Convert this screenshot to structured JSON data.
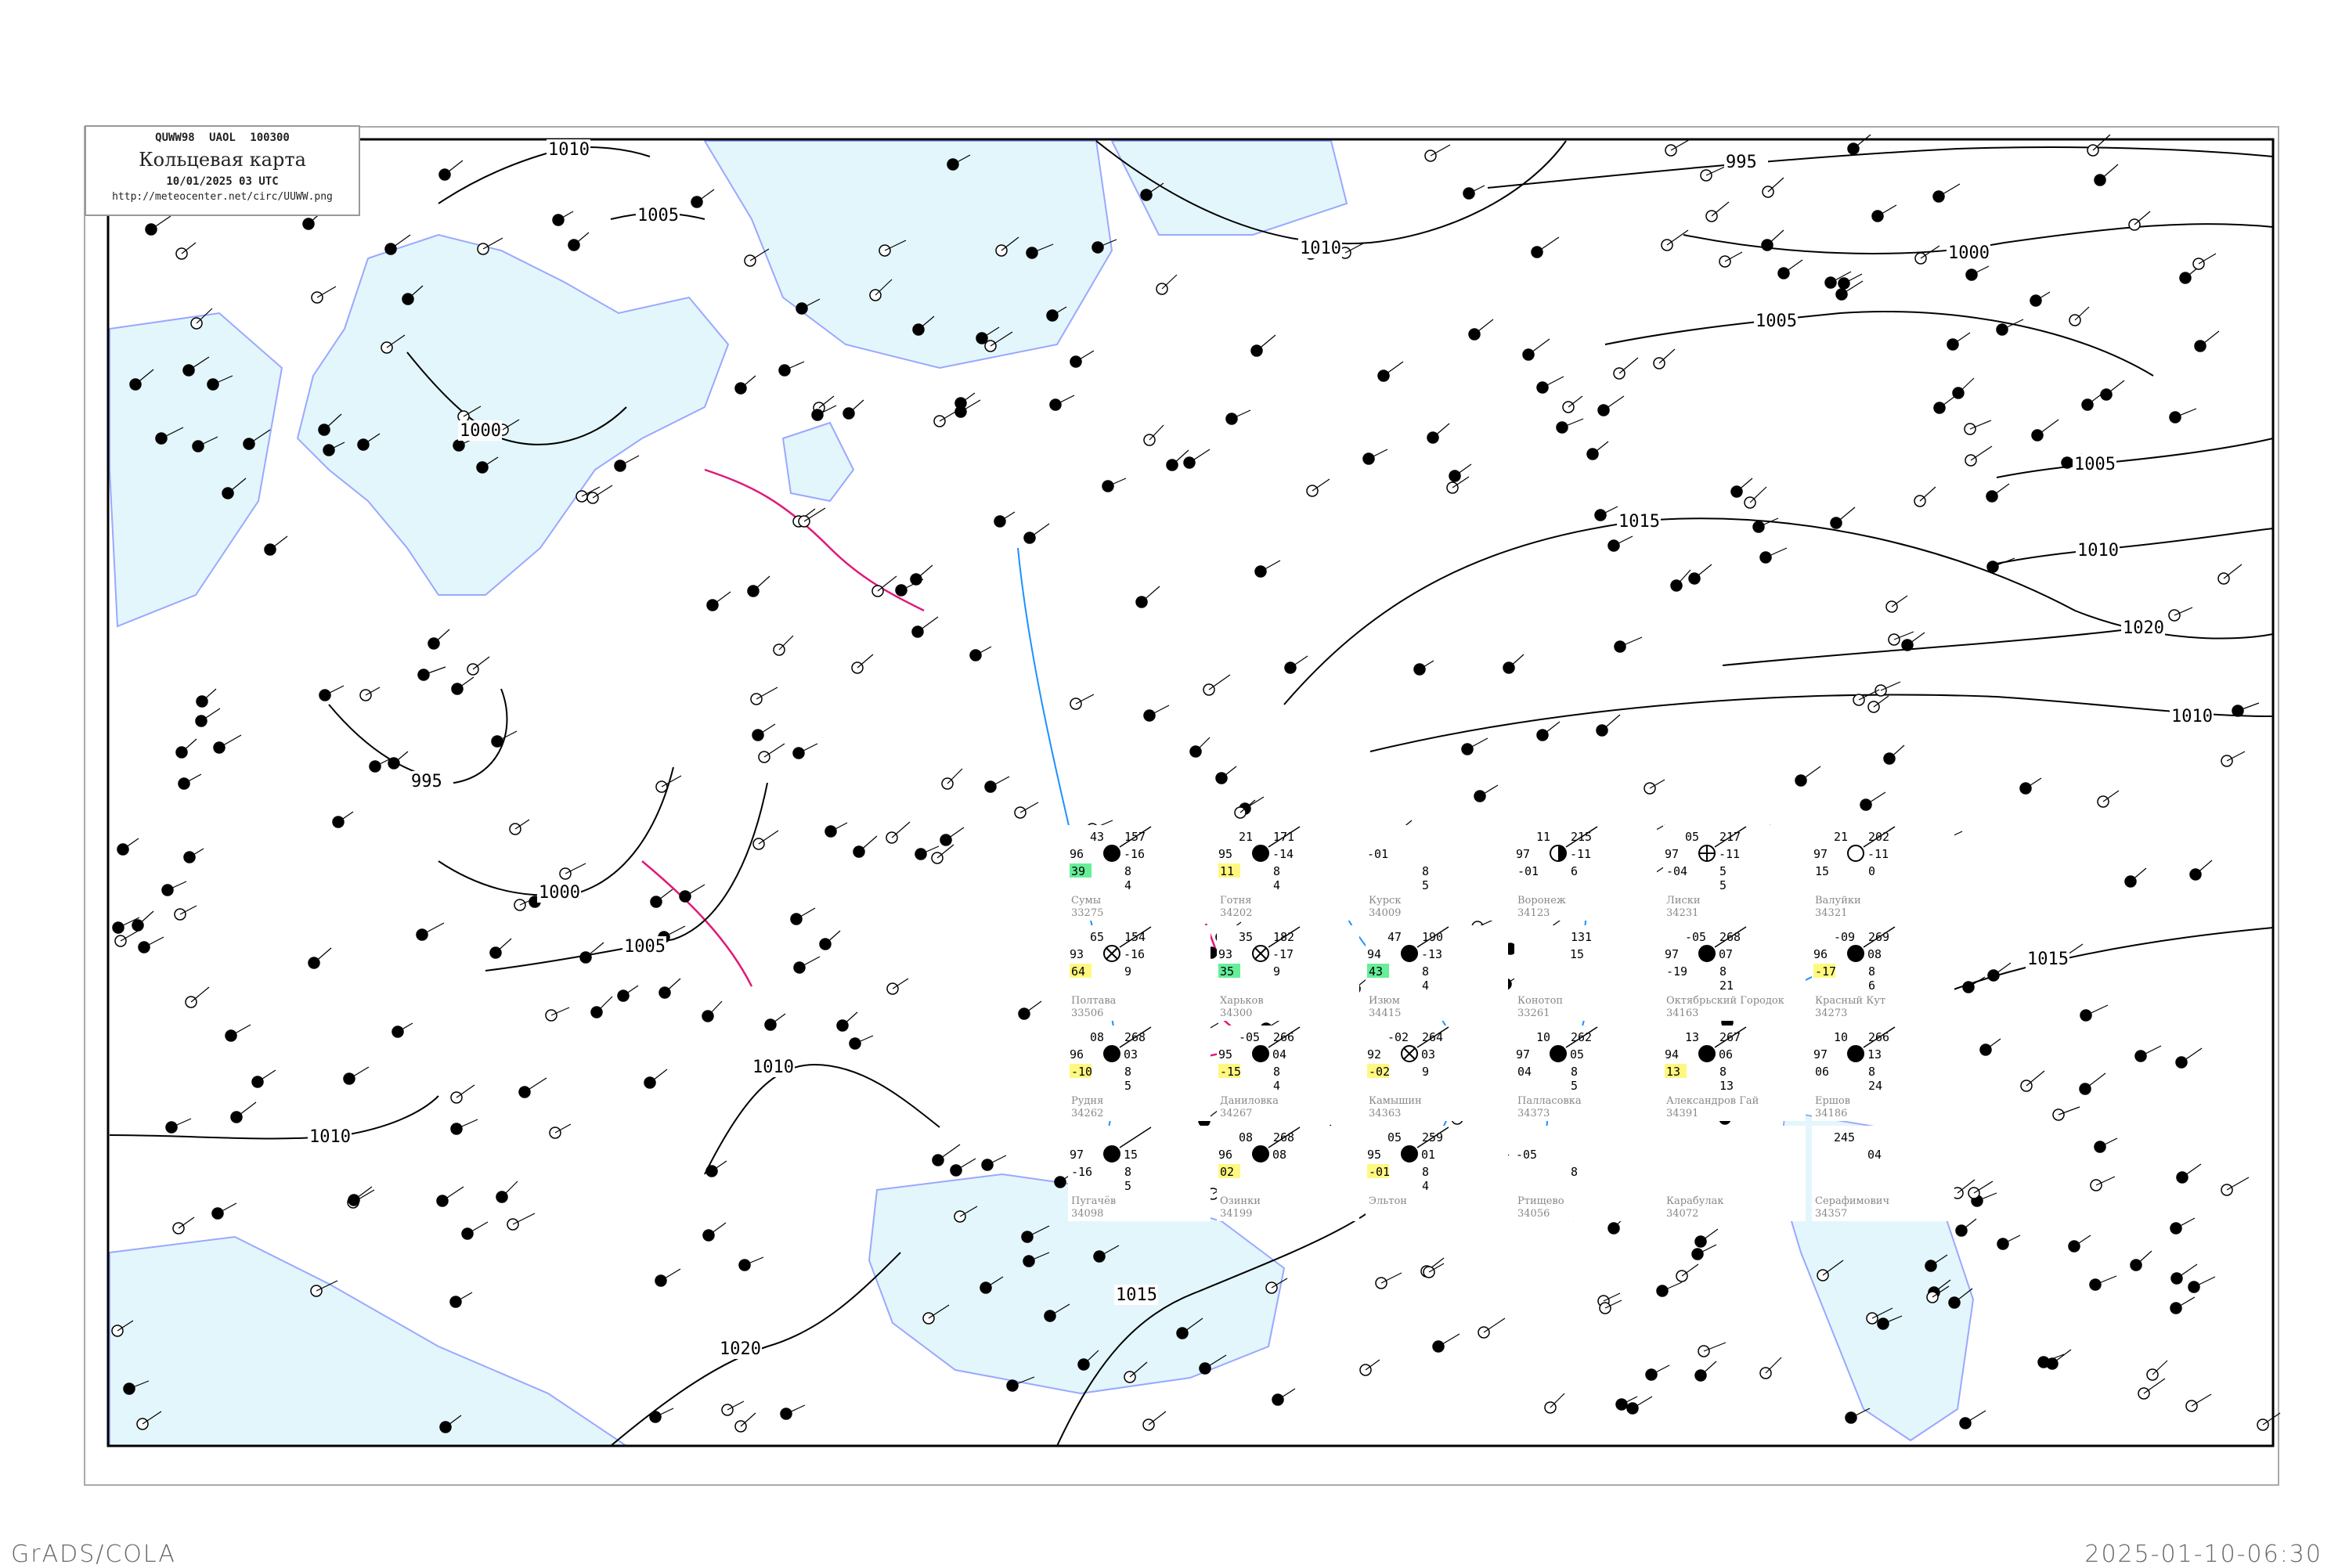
{
  "header": {
    "code": "QUWW98  UAOL  100300",
    "title": "Кольцевая карта",
    "datetime": "10/01/2025 03 UTC",
    "url": "http://meteocenter.net/circ/UUWW.png"
  },
  "footer": {
    "left": "GrADS/COLA",
    "right": "2025-01-10-06:30"
  },
  "colors": {
    "water": "#e3f6fb",
    "rivers": "#1e90ff",
    "isobars": "#000000",
    "fronts": "#e0197a",
    "box_green": "#66ee99",
    "box_yellow": "#fff880"
  },
  "isobar_labels": [
    "995",
    "1000",
    "1005",
    "1010",
    "1015",
    "1020",
    "1010",
    "1015",
    "1020",
    "1000",
    "1005",
    "995",
    "1000",
    "1010",
    "1005",
    "1010",
    "1010",
    "1015",
    "1010",
    "1005"
  ],
  "stations": [
    {
      "name": "Сумы",
      "id": "33275",
      "t": "43",
      "p": "157",
      "vis": "96",
      "td": "-16",
      "bl": "39",
      "tend": "8",
      "tend2": "4",
      "cover": "full",
      "box": "green"
    },
    {
      "name": "Готня",
      "id": "34202",
      "t": "21",
      "p": "171",
      "vis": "95",
      "td": "-14",
      "bl": "11",
      "tend": "8",
      "tend2": "4",
      "cover": "full",
      "box": "yellow"
    },
    {
      "name": "Курск",
      "id": "34009",
      "t": "",
      "p": "",
      "vis": "-01",
      "td": "",
      "bl": "",
      "tend": "8",
      "tend2": "5",
      "cover": "none",
      "box": ""
    },
    {
      "name": "Воронеж",
      "id": "34123",
      "t": "11",
      "p": "215",
      "vis": "97",
      "td": "-11",
      "bl": "-01",
      "tend": "6",
      "tend2": "",
      "cover": "half",
      "box": ""
    },
    {
      "name": "Лиски",
      "id": "34231",
      "t": "05",
      "p": "217",
      "vis": "97",
      "td": "-11",
      "bl": "-04",
      "tend": "5",
      "tend2": "5",
      "cover": "quarter",
      "box": ""
    },
    {
      "name": "Валуйки",
      "id": "34321",
      "t": "21",
      "p": "202",
      "vis": "97",
      "td": "-11",
      "bl": "15",
      "tend": "0",
      "tend2": "",
      "cover": "empty",
      "box": ""
    },
    {
      "name": "Полтава",
      "id": "33506",
      "t": "65",
      "p": "154",
      "vis": "93",
      "td": "-16",
      "bl": "64",
      "tend": "9",
      "tend2": "",
      "cover": "obscured",
      "box": "yellow"
    },
    {
      "name": "Харьков",
      "id": "34300",
      "t": "35",
      "p": "182",
      "vis": "93",
      "td": "-17",
      "bl": "35",
      "tend": "9",
      "tend2": "",
      "cover": "obscured",
      "box": "green"
    },
    {
      "name": "Изюм",
      "id": "34415",
      "t": "47",
      "p": "190",
      "vis": "94",
      "td": "-13",
      "bl": "43",
      "tend": "8",
      "tend2": "4",
      "cover": "full",
      "box": "green"
    },
    {
      "name": "Конотоп",
      "id": "33261",
      "t": "",
      "p": "131",
      "vis": "",
      "td": "15",
      "bl": "",
      "tend": "",
      "tend2": "",
      "cover": "none",
      "box": ""
    },
    {
      "name": "Октябрьский Городок",
      "id": "34163",
      "t": "-05",
      "p": "268",
      "vis": "97",
      "td": "07",
      "bl": "-19",
      "tend": "8",
      "tend2": "21",
      "cover": "full",
      "box": ""
    },
    {
      "name": "Красный Кут",
      "id": "34273",
      "t": "-09",
      "p": "269",
      "vis": "96",
      "td": "08",
      "bl": "-17",
      "tend": "8",
      "tend2": "6",
      "cover": "full",
      "box": "yellow"
    },
    {
      "name": "Рудня",
      "id": "34262",
      "t": "08",
      "p": "268",
      "vis": "96",
      "td": "03",
      "bl": "-10",
      "tend": "8",
      "tend2": "5",
      "cover": "full",
      "box": "yellow"
    },
    {
      "name": "Даниловка",
      "id": "34267",
      "t": "-05",
      "p": "266",
      "vis": "95",
      "td": "04",
      "bl": "-15",
      "tend": "8",
      "tend2": "4",
      "cover": "full",
      "box": "yellow"
    },
    {
      "name": "Камышин",
      "id": "34363",
      "t": "-02",
      "p": "264",
      "vis": "92",
      "td": "03",
      "bl": "-02",
      "tend": "9",
      "tend2": "",
      "cover": "obscured",
      "box": "yellow"
    },
    {
      "name": "Палласовка",
      "id": "34373",
      "t": "10",
      "p": "262",
      "vis": "97",
      "td": "05",
      "bl": "04",
      "tend": "8",
      "tend2": "5",
      "cover": "full",
      "box": ""
    },
    {
      "name": "Александров Гай",
      "id": "34391",
      "t": "13",
      "p": "267",
      "vis": "94",
      "td": "06",
      "bl": "13",
      "tend": "8",
      "tend2": "13",
      "cover": "full",
      "box": "yellow"
    },
    {
      "name": "Ершов",
      "id": "34186",
      "t": "10",
      "p": "266",
      "vis": "97",
      "td": "13",
      "bl": "06",
      "tend": "8",
      "tend2": "24",
      "cover": "full",
      "box": ""
    },
    {
      "name": "Пугачёв",
      "id": "34098",
      "t": "",
      "p": "",
      "vis": "97",
      "td": "15",
      "bl": "-16",
      "tend": "8",
      "tend2": "5",
      "cover": "full",
      "box": ""
    },
    {
      "name": "Озинки",
      "id": "34199",
      "t": "08",
      "p": "268",
      "vis": "96",
      "td": "08",
      "bl": "02",
      "tend": "",
      "tend2": "",
      "cover": "full",
      "box": "yellow"
    },
    {
      "name": "Эльтон",
      "id": "",
      "t": "05",
      "p": "259",
      "vis": "95",
      "td": "01",
      "bl": "-01",
      "tend": "8",
      "tend2": "4",
      "cover": "full",
      "box": "yellow"
    },
    {
      "name": "Ртищево",
      "id": "34056",
      "t": "",
      "p": "",
      "vis": "-05",
      "td": "",
      "bl": "",
      "tend": "8",
      "tend2": "",
      "cover": "none",
      "box": ""
    },
    {
      "name": "Карабулак",
      "id": "34072",
      "t": "",
      "p": "",
      "vis": "",
      "td": "",
      "bl": "",
      "tend": "",
      "tend2": "",
      "cover": "none",
      "box": ""
    },
    {
      "name": "Серафимович",
      "id": "34357",
      "t": "245",
      "p": "",
      "vis": "",
      "td": "04",
      "bl": "",
      "tend": "",
      "tend2": "",
      "cover": "none",
      "box": ""
    }
  ]
}
